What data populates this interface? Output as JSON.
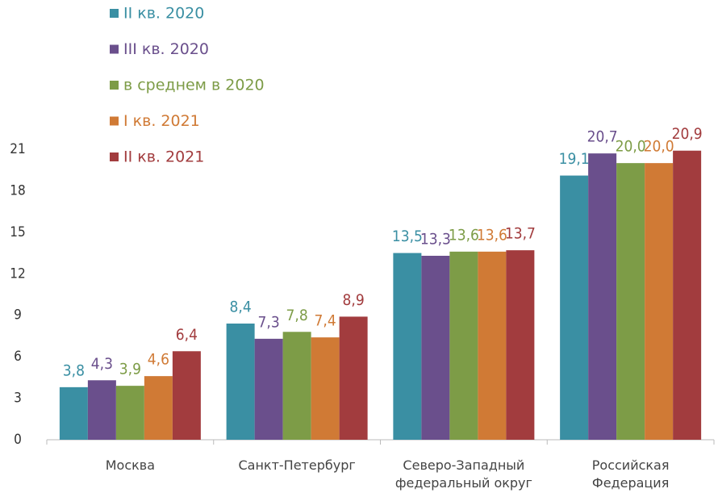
{
  "chart_data": {
    "type": "bar",
    "categories": [
      "Москва",
      "Санкт-Петербург",
      "Северо-Западный федеральный округ",
      "Российская Федерация"
    ],
    "series": [
      {
        "name": "II кв. 2020",
        "color": "#3a8fa3",
        "values": [
          3.8,
          8.4,
          13.5,
          19.1
        ],
        "value_labels": [
          "3,8",
          "8,4",
          "13,5",
          "19,1"
        ]
      },
      {
        "name": "III кв. 2020",
        "color": "#6a4f8c",
        "values": [
          4.3,
          7.3,
          13.3,
          20.7
        ],
        "value_labels": [
          "4,3",
          "7,3",
          "13,3",
          "20,7"
        ]
      },
      {
        "name": "в среднем в 2020",
        "color": "#7d9c47",
        "values": [
          3.9,
          7.8,
          13.6,
          20.0
        ],
        "value_labels": [
          "3,9",
          "7,8",
          "13,6",
          "20,0"
        ]
      },
      {
        "name": "I кв. 2021",
        "color": "#d07a35",
        "values": [
          4.6,
          7.4,
          13.6,
          20.0
        ],
        "value_labels": [
          "4,6",
          "7,4",
          "13,6",
          "20,0"
        ]
      },
      {
        "name": "II кв. 2021",
        "color": "#a23c3e",
        "values": [
          6.4,
          8.9,
          13.7,
          20.9
        ],
        "value_labels": [
          "6,4",
          "8,9",
          "13,7",
          "20,9"
        ]
      }
    ],
    "ylim": [
      0,
      21
    ],
    "yticks": [
      0,
      3,
      6,
      9,
      12,
      15,
      18,
      21
    ],
    "grid": false,
    "legend": "top-left"
  }
}
